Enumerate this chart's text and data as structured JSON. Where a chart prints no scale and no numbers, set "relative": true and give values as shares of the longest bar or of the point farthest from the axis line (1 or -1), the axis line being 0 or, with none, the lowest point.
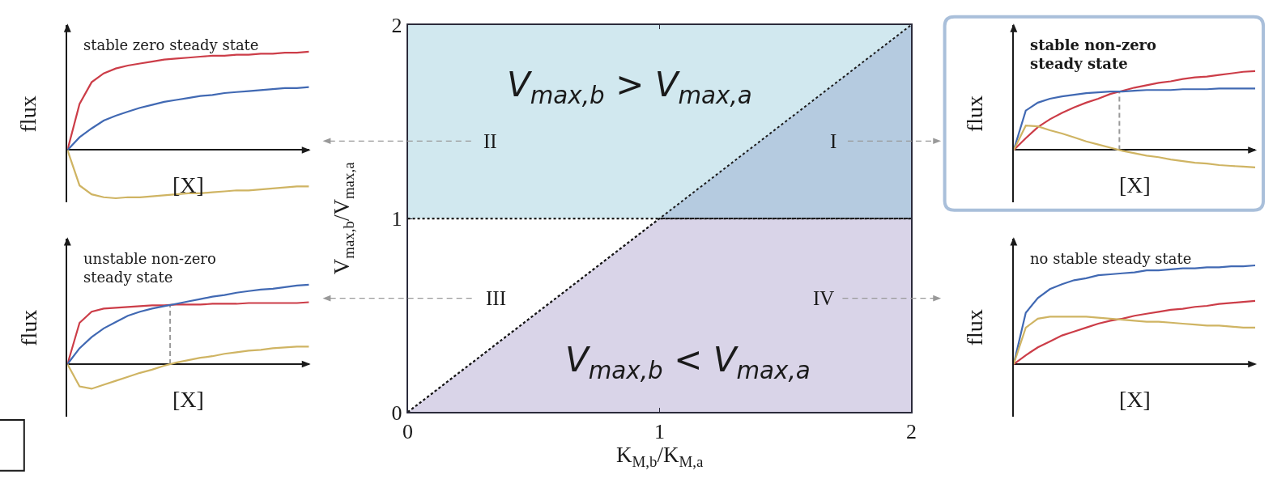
{
  "chart_data": [
    {
      "type": "line",
      "relative": true,
      "title": "stable zero steady state",
      "xlabel": "[X]",
      "ylabel": "flux",
      "categories": [
        null,
        null,
        null,
        null,
        null,
        null,
        null,
        null,
        null,
        null,
        null,
        null,
        null,
        null,
        null,
        null,
        null,
        null,
        null,
        null,
        null
      ],
      "series": [
        {
          "color": "#cc3d48",
          "values": [
            0,
            0.47,
            0.69,
            0.78,
            0.83,
            0.86,
            0.88,
            0.9,
            0.92,
            0.93,
            0.94,
            0.95,
            0.96,
            0.96,
            0.97,
            0.97,
            0.98,
            0.98,
            0.99,
            0.99,
            1
          ]
        },
        {
          "color": "#4169b3",
          "values": [
            0,
            0.13,
            0.22,
            0.3,
            0.35,
            0.39,
            0.43,
            0.46,
            0.49,
            0.51,
            0.53,
            0.55,
            0.56,
            0.58,
            0.59,
            0.6,
            0.61,
            0.62,
            0.63,
            0.63,
            0.64
          ]
        },
        {
          "color": "#cfb463",
          "values": [
            0,
            -0.36,
            -0.45,
            -0.48,
            -0.49,
            -0.48,
            -0.48,
            -0.47,
            -0.46,
            -0.45,
            -0.44,
            -0.44,
            -0.43,
            -0.42,
            -0.41,
            -0.41,
            -0.4,
            -0.39,
            -0.38,
            -0.37,
            -0.37
          ]
        }
      ]
    },
    {
      "type": "area",
      "stacked": true,
      "xlabel": "K$_{M,b}$/K$_{M,a}$",
      "ylabel": "V$_{max,b}$/V$_{max,a}$",
      "xlim": [
        0,
        2
      ],
      "ylim": [
        0,
        2
      ],
      "xticks": [
        0,
        1,
        2
      ],
      "yticks": [
        0,
        1,
        2
      ],
      "line_style": "dotted",
      "series": [
        {
          "x": [
            0,
            1,
            2
          ],
          "values": [
            0,
            1,
            1
          ],
          "color": "#d9d4e8"
        },
        {
          "x": [
            0,
            1,
            2
          ],
          "values": [
            0,
            0,
            1
          ],
          "color": "#b5cbe0"
        }
      ],
      "bands": [
        {
          "axis": "y",
          "from": 1,
          "to": 2,
          "color": "#d1e8ef"
        }
      ],
      "ref_lines": [
        {
          "axis": "y",
          "value": 1,
          "color": "#1a1a1a",
          "line_style": "dotted"
        }
      ],
      "annotations": [
        "V$_{max,b}$ > V$_{max,a}$",
        "II",
        "I",
        "III",
        "IV",
        "V$_{max,b}$ < V$_{max,a}$"
      ]
    },
    {
      "type": "line",
      "relative": true,
      "title": "stable non-zero steady state",
      "xlabel": "[X]",
      "ylabel": "flux",
      "categories": [
        null,
        null,
        null,
        null,
        null,
        null,
        null,
        null,
        null,
        null,
        null,
        null,
        null,
        null,
        null,
        null,
        null,
        null,
        null,
        null,
        null
      ],
      "series": [
        {
          "color": "#cc3d48",
          "values": [
            0,
            0.15,
            0.29,
            0.39,
            0.47,
            0.54,
            0.6,
            0.65,
            0.71,
            0.75,
            0.79,
            0.82,
            0.85,
            0.87,
            0.9,
            0.92,
            0.93,
            0.95,
            0.97,
            0.99,
            1
          ]
        },
        {
          "color": "#4169b3",
          "values": [
            0,
            0.5,
            0.6,
            0.65,
            0.68,
            0.7,
            0.72,
            0.73,
            0.74,
            0.74,
            0.75,
            0.76,
            0.76,
            0.76,
            0.77,
            0.77,
            0.77,
            0.78,
            0.78,
            0.78,
            0.78
          ]
        },
        {
          "color": "#cfb463",
          "values": [
            0,
            0.31,
            0.3,
            0.25,
            0.21,
            0.16,
            0.11,
            0.07,
            0.03,
            -0.01,
            -0.04,
            -0.07,
            -0.09,
            -0.12,
            -0.14,
            -0.16,
            -0.17,
            -0.19,
            -0.2,
            -0.21,
            -0.22
          ]
        }
      ]
    },
    {
      "type": "line",
      "relative": true,
      "title": "unstable non-zero steady state",
      "xlabel": "[X]",
      "ylabel": "flux",
      "categories": [
        null,
        null,
        null,
        null,
        null,
        null,
        null,
        null,
        null,
        null,
        null,
        null,
        null,
        null,
        null,
        null,
        null,
        null,
        null,
        null,
        null
      ],
      "series": [
        {
          "color": "#cc3d48",
          "values": [
            0,
            0.52,
            0.66,
            0.7,
            0.71,
            0.72,
            0.73,
            0.74,
            0.74,
            0.75,
            0.75,
            0.75,
            0.76,
            0.76,
            0.76,
            0.77,
            0.77,
            0.77,
            0.77,
            0.77,
            0.78
          ]
        },
        {
          "color": "#4169b3",
          "values": [
            0,
            0.2,
            0.34,
            0.45,
            0.53,
            0.61,
            0.66,
            0.7,
            0.73,
            0.76,
            0.79,
            0.82,
            0.85,
            0.87,
            0.9,
            0.92,
            0.94,
            0.95,
            0.97,
            0.99,
            1
          ]
        },
        {
          "color": "#cfb463",
          "values": [
            0,
            -0.28,
            -0.31,
            -0.26,
            -0.21,
            -0.16,
            -0.11,
            -0.07,
            -0.02,
            0.02,
            0.05,
            0.08,
            0.1,
            0.13,
            0.15,
            0.17,
            0.18,
            0.2,
            0.21,
            0.22,
            0.22
          ]
        }
      ]
    },
    {
      "type": "line",
      "relative": true,
      "title": "no stable steady state",
      "xlabel": "[X]",
      "ylabel": "flux",
      "categories": [
        null,
        null,
        null,
        null,
        null,
        null,
        null,
        null,
        null,
        null,
        null,
        null,
        null,
        null,
        null,
        null,
        null,
        null,
        null,
        null,
        null
      ],
      "series": [
        {
          "color": "#cc3d48",
          "values": [
            0,
            0.09,
            0.17,
            0.23,
            0.29,
            0.33,
            0.37,
            0.41,
            0.44,
            0.46,
            0.49,
            0.51,
            0.53,
            0.55,
            0.56,
            0.58,
            0.59,
            0.61,
            0.62,
            0.63,
            0.64
          ]
        },
        {
          "color": "#4169b3",
          "values": [
            0,
            0.52,
            0.67,
            0.76,
            0.81,
            0.85,
            0.87,
            0.9,
            0.91,
            0.92,
            0.93,
            0.95,
            0.95,
            0.96,
            0.97,
            0.97,
            0.98,
            0.98,
            0.99,
            0.99,
            1
          ]
        },
        {
          "color": "#cfb463",
          "values": [
            0,
            0.37,
            0.46,
            0.48,
            0.48,
            0.48,
            0.48,
            0.47,
            0.46,
            0.45,
            0.44,
            0.43,
            0.43,
            0.42,
            0.41,
            0.4,
            0.39,
            0.39,
            0.38,
            0.37,
            0.37
          ]
        }
      ]
    }
  ]
}
